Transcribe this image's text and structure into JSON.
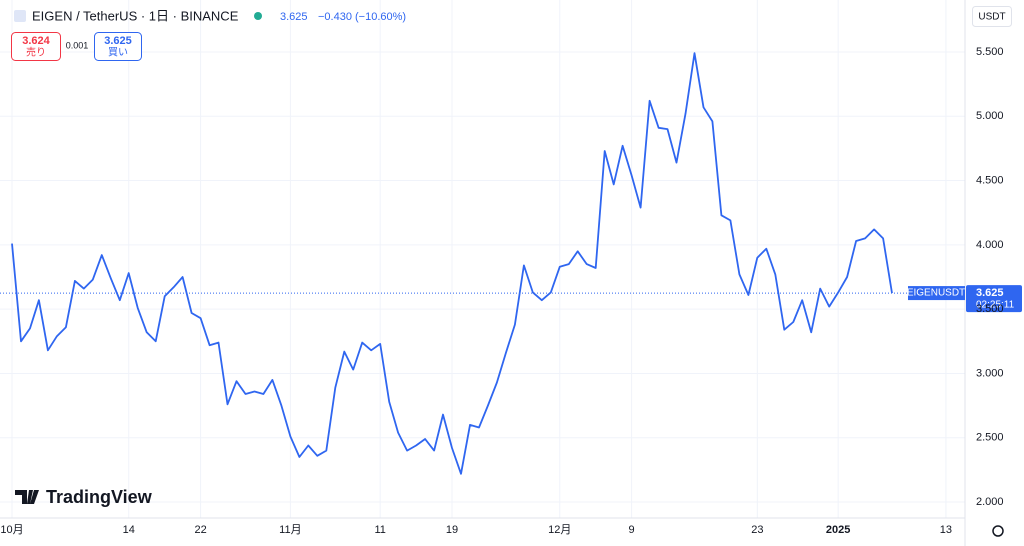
{
  "header": {
    "symbol": "EIGEN / TetherUS · 1日 · BINANCE",
    "last": "3.625",
    "change": "−0.430 (−10.60%)",
    "sell_price": "3.624",
    "sell_label": "売り",
    "spread": "0.001",
    "buy_price": "3.625",
    "buy_label": "買い",
    "currency": "USDT"
  },
  "watermark": "TradingView",
  "price_tag": {
    "symbol": "EIGENUSDT",
    "countdown": "02:25:11"
  },
  "chart_data": {
    "type": "line",
    "color": "#2f66f0",
    "grid": true,
    "last_line": true,
    "categories": [
      "10月",
      null,
      null,
      null,
      null,
      null,
      null,
      null,
      null,
      null,
      null,
      null,
      null,
      "14",
      null,
      null,
      null,
      null,
      null,
      null,
      null,
      "22",
      null,
      null,
      null,
      null,
      null,
      null,
      null,
      null,
      null,
      "11月",
      null,
      null,
      null,
      null,
      null,
      null,
      null,
      null,
      null,
      "11",
      null,
      null,
      null,
      null,
      null,
      null,
      null,
      "19",
      null,
      null,
      null,
      null,
      null,
      null,
      null,
      null,
      null,
      null,
      null,
      "12月",
      null,
      null,
      null,
      null,
      null,
      null,
      null,
      "9",
      null,
      null,
      null,
      null,
      null,
      null,
      null,
      null,
      null,
      null,
      null,
      null,
      null,
      "23",
      null,
      null,
      null,
      null,
      null,
      null,
      null,
      null,
      "2025",
      null,
      null,
      null,
      null,
      null,
      null,
      null,
      null,
      null,
      null,
      null,
      "13",
      null,
      null,
      null
    ],
    "values": [
      4.01,
      3.25,
      3.35,
      3.57,
      3.18,
      3.29,
      3.36,
      3.72,
      3.66,
      3.73,
      3.92,
      3.74,
      3.57,
      3.78,
      3.51,
      3.32,
      3.25,
      3.6,
      3.67,
      3.75,
      3.47,
      3.43,
      3.22,
      3.24,
      2.76,
      2.94,
      2.84,
      2.86,
      2.84,
      2.95,
      2.75,
      2.51,
      2.35,
      2.44,
      2.36,
      2.4,
      2.89,
      3.17,
      3.03,
      3.24,
      3.18,
      3.23,
      2.78,
      2.54,
      2.4,
      2.44,
      2.49,
      2.4,
      2.68,
      2.42,
      2.22,
      2.6,
      2.58,
      2.75,
      2.93,
      3.16,
      3.38,
      3.84,
      3.63,
      3.57,
      3.63,
      3.83,
      3.85,
      3.95,
      3.85,
      3.82,
      4.73,
      4.47,
      4.77,
      4.54,
      4.29,
      5.12,
      4.91,
      4.9,
      4.64,
      5.02,
      5.49,
      5.07,
      4.96,
      4.23,
      4.19,
      3.77,
      3.61,
      3.9,
      3.97,
      3.77,
      3.34,
      3.4,
      3.57,
      3.32,
      3.66,
      3.52,
      3.63,
      3.75,
      4.03,
      4.05,
      4.12,
      4.05,
      3.625,
      null,
      null,
      null,
      null,
      null,
      null,
      null,
      null,
      null
    ],
    "ylim": [
      1.876,
      5.904
    ],
    "yticks": [
      {
        "value": 2,
        "label": "2.000"
      },
      {
        "value": 2.5,
        "label": "2.500"
      },
      {
        "value": 3,
        "label": "3.000"
      },
      {
        "value": 3.5,
        "label": "3.500"
      },
      {
        "value": 4,
        "label": "4.000"
      },
      {
        "value": 4.5,
        "label": "4.500"
      },
      {
        "value": 5,
        "label": "5.000"
      },
      {
        "value": 5.5,
        "label": "5.500"
      }
    ]
  }
}
